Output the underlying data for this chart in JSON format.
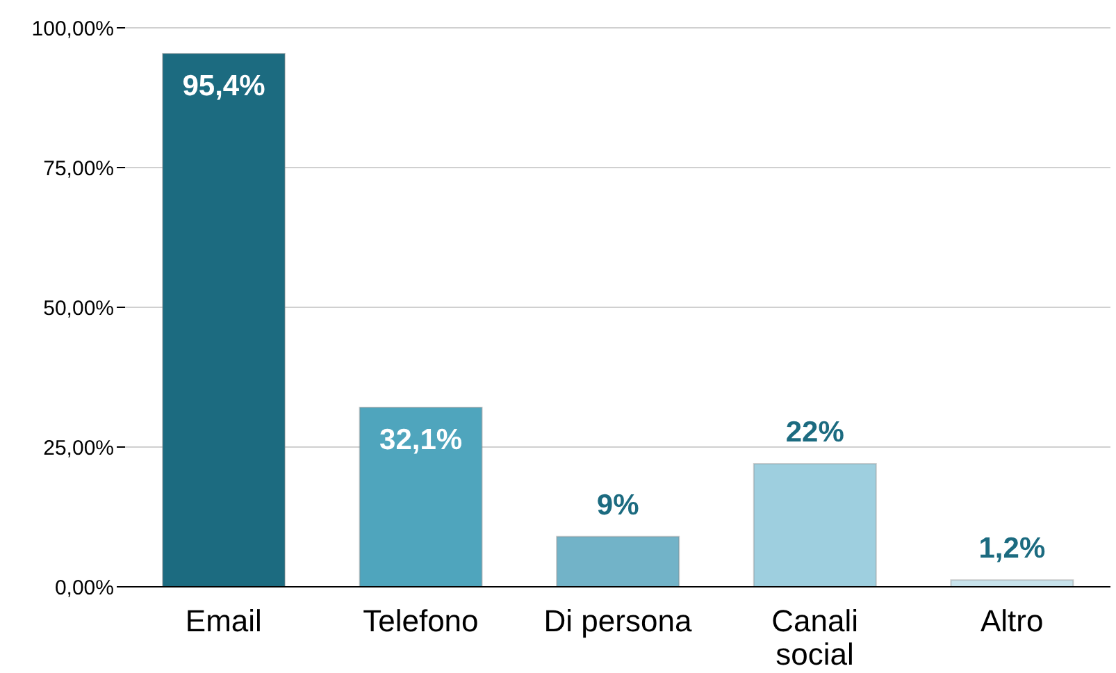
{
  "chart_data": {
    "type": "bar",
    "categories": [
      "Email",
      "Telefono",
      "Di persona",
      "Canali social",
      "Altro"
    ],
    "values": [
      95.4,
      32.1,
      9,
      22,
      1.2
    ],
    "colors": [
      "#1c6b80",
      "#4fa5bd",
      "#72b3c8",
      "#9ecfdf",
      "#c8e3ec"
    ],
    "value_labels": [
      "95,4%",
      "32,1%",
      "9%",
      "22%",
      "1,2%"
    ],
    "ylim": [
      0,
      100
    ],
    "yticks": [
      {
        "value": 0,
        "label": "0,00%"
      },
      {
        "value": 25,
        "label": "25,00%"
      },
      {
        "value": 50,
        "label": "50,00%"
      },
      {
        "value": 75,
        "label": "75,00%"
      },
      {
        "value": 100,
        "label": "100,00%"
      }
    ],
    "grid": "y",
    "legend": false
  }
}
